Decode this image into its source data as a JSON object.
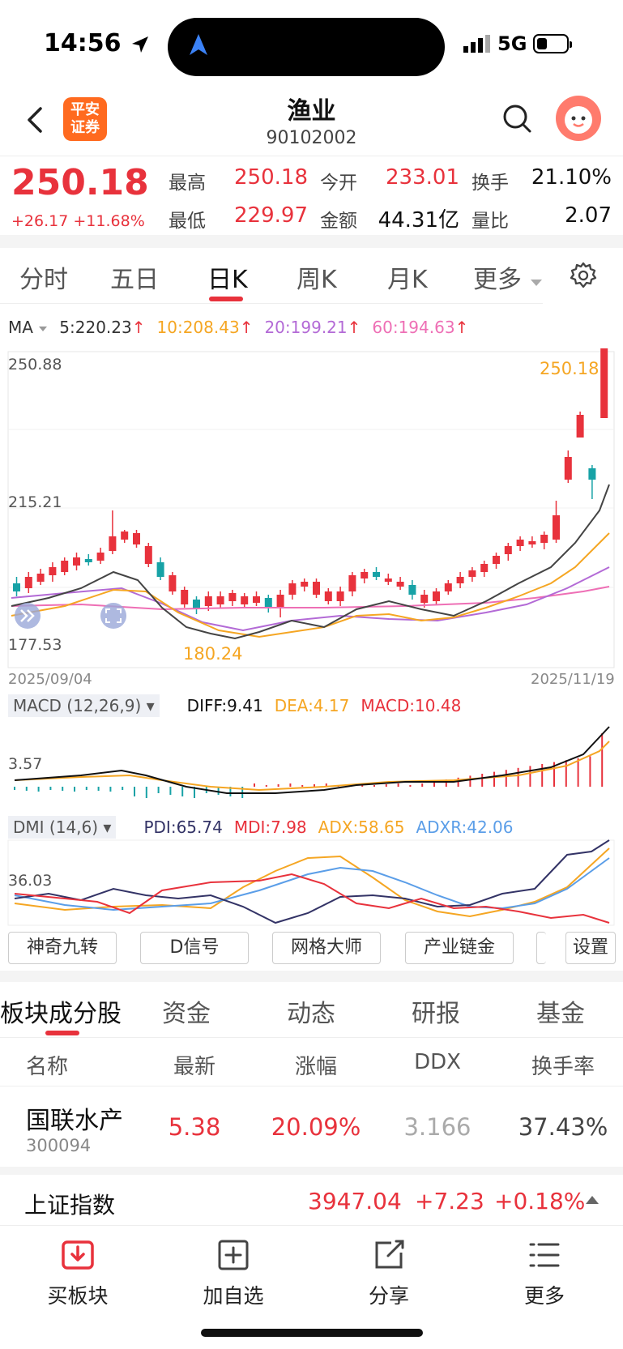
{
  "status": {
    "time": "14:56",
    "network": "5G"
  },
  "header": {
    "logo_line1": "平安",
    "logo_line2": "证券",
    "title": "渔业",
    "code": "90102002"
  },
  "quote": {
    "price": "250.18",
    "change": "+26.17",
    "change_pct": "+11.68%",
    "items": [
      {
        "label": "最高",
        "value": "250.18",
        "color": "#e8323c"
      },
      {
        "label": "今开",
        "value": "233.01",
        "color": "#e8323c"
      },
      {
        "label": "换手",
        "value": "21.10%",
        "color": "#111111"
      },
      {
        "label": "最低",
        "value": "229.97",
        "color": "#e8323c"
      },
      {
        "label": "金额",
        "value": "44.31亿",
        "color": "#111111"
      },
      {
        "label": "量比",
        "value": "2.07",
        "color": "#111111"
      }
    ]
  },
  "period_tabs": [
    "分时",
    "五日",
    "日K",
    "周K",
    "月K",
    "更多"
  ],
  "active_period": "日K",
  "ma_legend": {
    "label": "MA",
    "items": [
      {
        "text": "5:220.23",
        "color": "#333333"
      },
      {
        "text": "10:208.43",
        "color": "#f5a623"
      },
      {
        "text": "20:199.21",
        "color": "#b36ad6"
      },
      {
        "text": "60:194.63",
        "color": "#ee6fb5"
      }
    ]
  },
  "kline": {
    "y_top_label": "250.88",
    "y_mid_label": "215.21",
    "y_bottom_label": "177.53",
    "low_marker": "180.24",
    "high_marker": "250.18",
    "start_date": "2025/09/04",
    "end_date": "2025/11/19"
  },
  "macd": {
    "selector": "MACD (12,26,9)",
    "diff": "DIFF:9.41",
    "dea": "DEA:4.17",
    "macd": "MACD:10.48",
    "y_label": "3.57"
  },
  "dmi": {
    "selector": "DMI (14,6)",
    "pdi": "PDI:65.74",
    "mdi": "MDI:7.98",
    "adx": "ADX:58.65",
    "adxr": "ADXR:42.06",
    "y_label": "36.03"
  },
  "tools": [
    "神奇九转",
    "D信号",
    "网格大师",
    "产业链金",
    "设置"
  ],
  "section_tabs": [
    "板块成分股",
    "资金",
    "动态",
    "研报",
    "基金"
  ],
  "table": {
    "headers": [
      "名称",
      "最新",
      "涨幅",
      "DDX",
      "换手率"
    ],
    "row": {
      "name": "国联水产",
      "code": "300094",
      "latest": "5.38",
      "change": "20.09%",
      "ddx": "3.166",
      "turnover": "37.43%"
    }
  },
  "index_bar": {
    "name": "上证指数",
    "value": "3947.04",
    "change": "+7.23",
    "change_pct": "+0.18%"
  },
  "bottom_bar": [
    "买板块",
    "加自选",
    "分享",
    "更多"
  ],
  "colors": {
    "up": "#e8323c",
    "down": "#17a2a6",
    "accent": "#e8323c"
  }
}
